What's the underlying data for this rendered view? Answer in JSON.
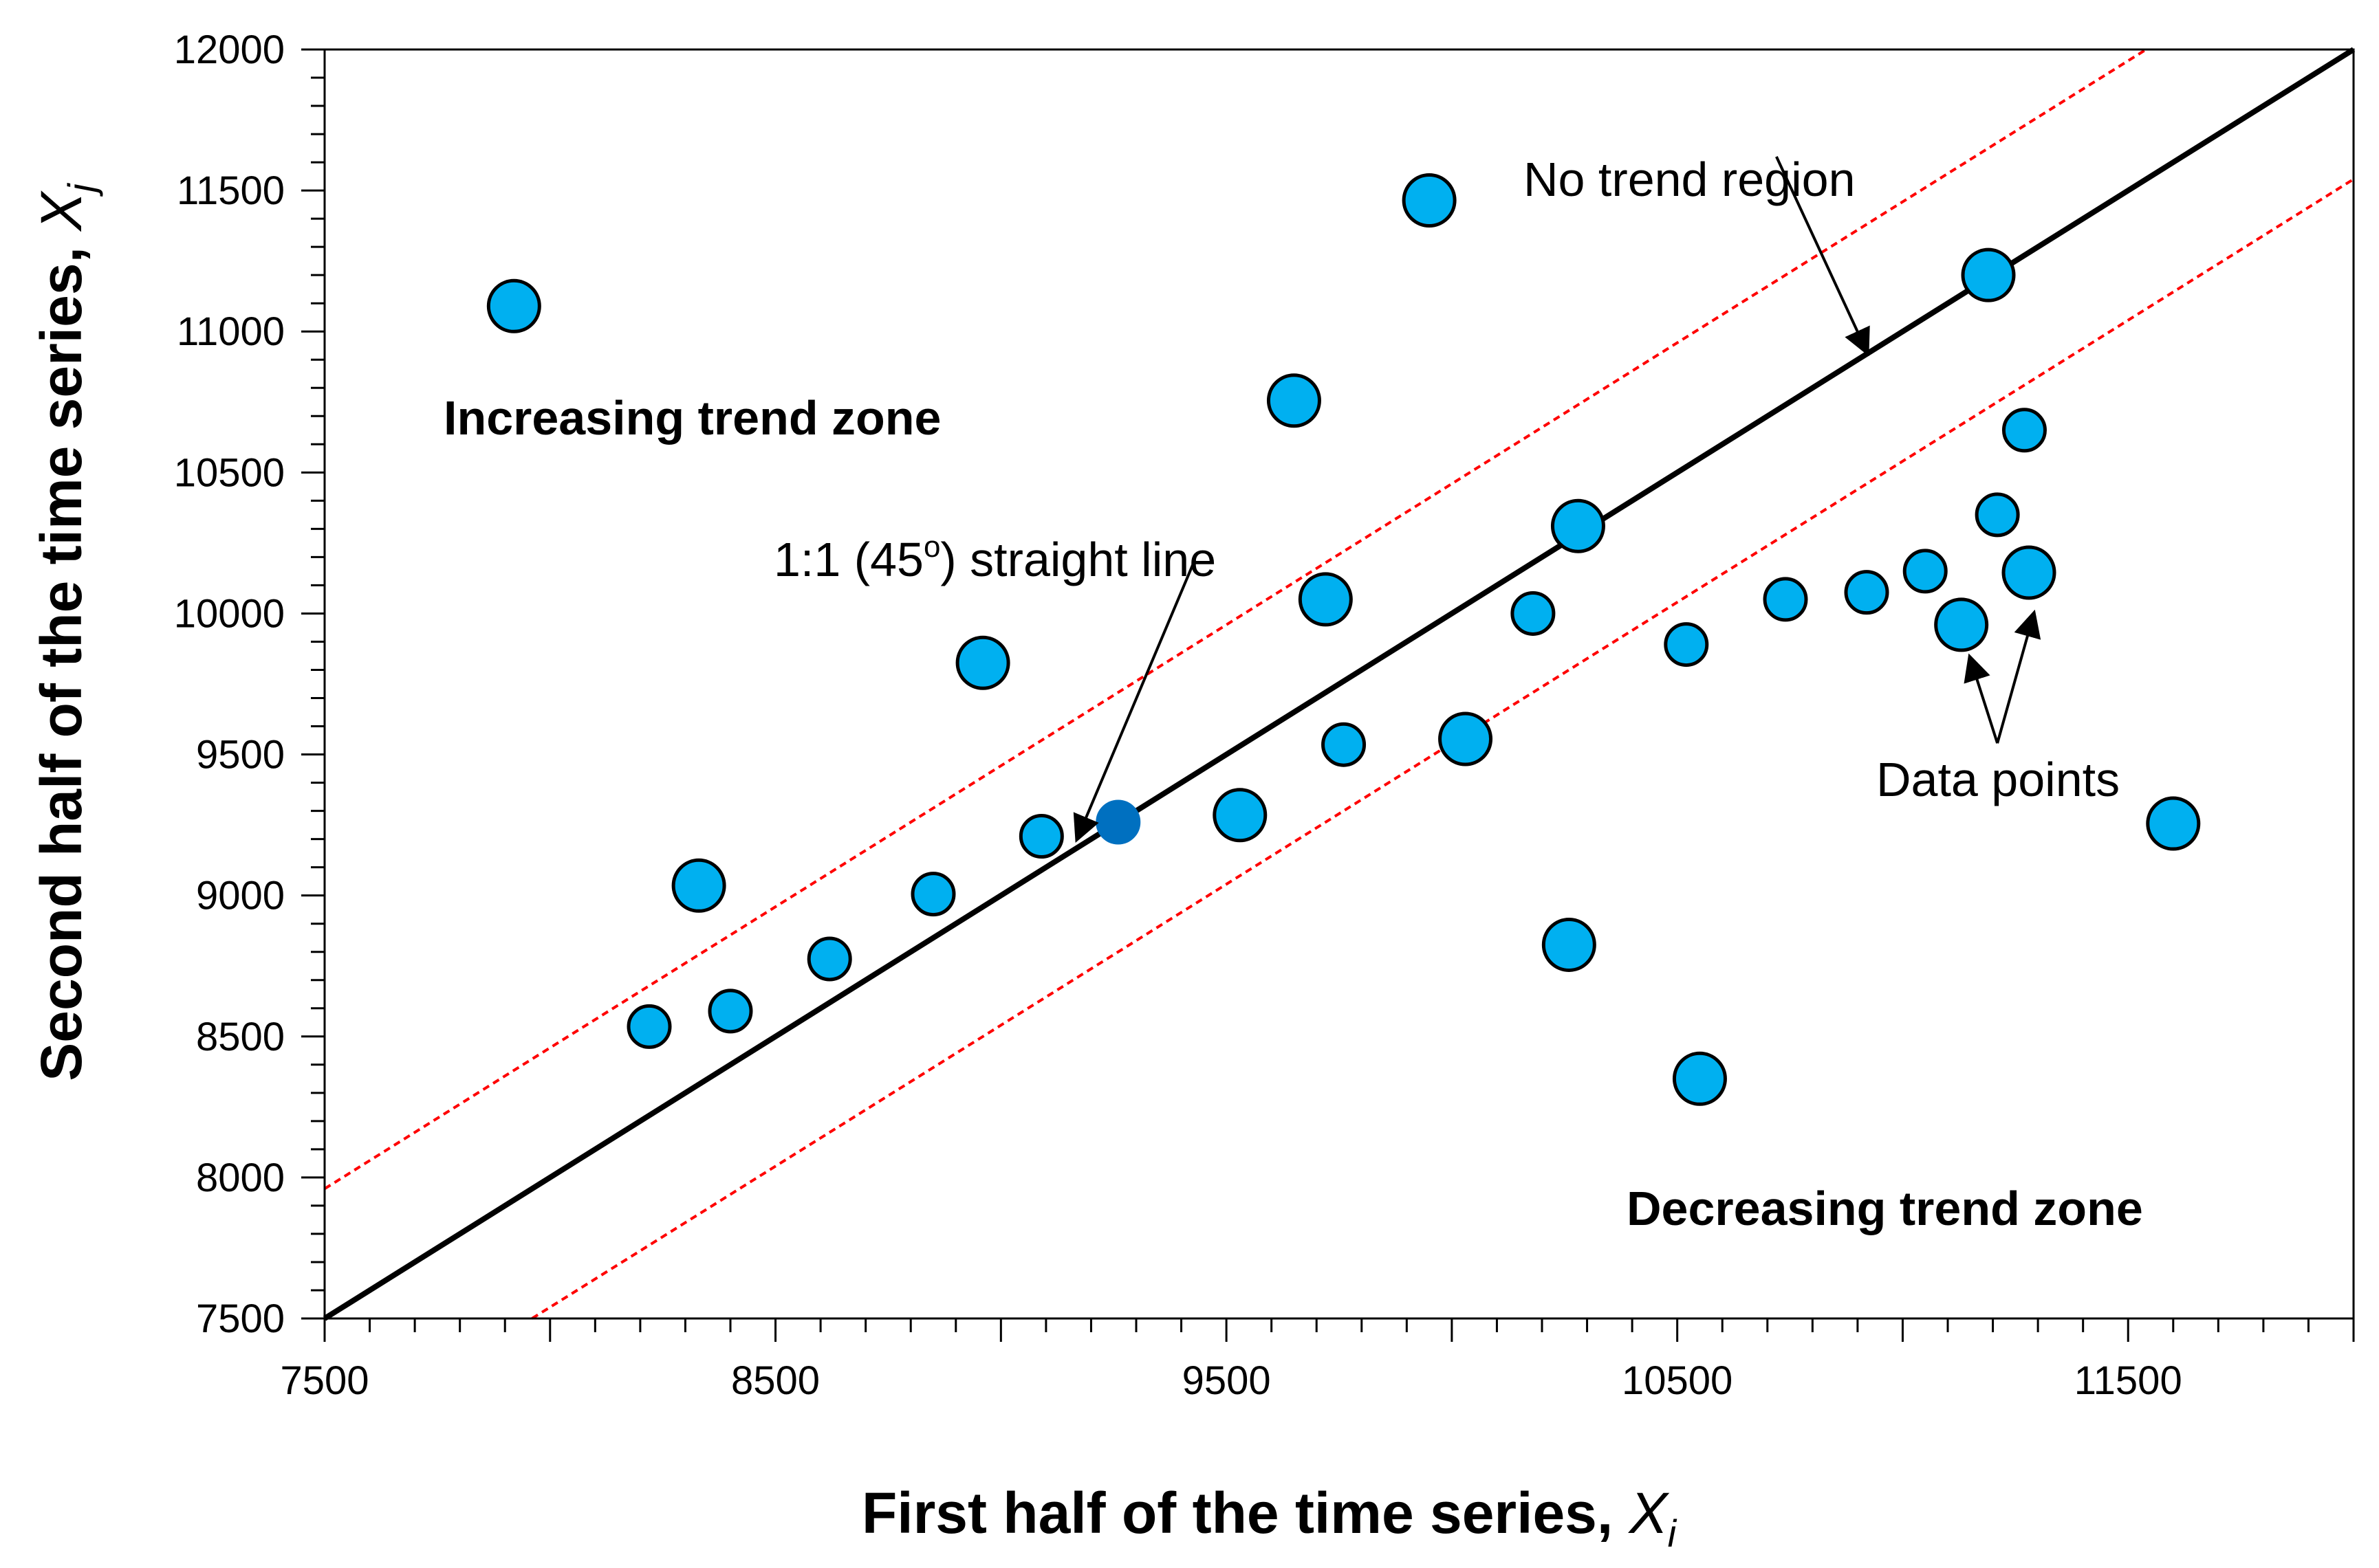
{
  "chart_data": {
    "type": "scatter",
    "title": "",
    "xlabel": "First half of the time series, ",
    "xlabel_var": "X",
    "xlabel_sub": "i",
    "ylabel": "Second half of the time series, ",
    "ylabel_var": "X",
    "ylabel_sub": "j",
    "xlim": [
      7500,
      12000
    ],
    "ylim": [
      7500,
      12000
    ],
    "xticks": [
      7500,
      8500,
      9500,
      10500,
      11500
    ],
    "yticks": [
      7500,
      8000,
      8500,
      9000,
      9500,
      10000,
      10500,
      11000,
      11500,
      12000
    ],
    "xtick_labels": [
      "7500",
      "8500",
      "9500",
      "10500",
      "11500"
    ],
    "ytick_labels": [
      "7500",
      "8000",
      "8500",
      "9000",
      "9500",
      "10000",
      "10500",
      "11000",
      "11500",
      "12000"
    ],
    "x_minor_step": 100,
    "y_minor_step": 100,
    "grid": false,
    "colors": {
      "points": "#00b0f0",
      "highlight_point": "#0070c0",
      "one_to_one_line": "#000000",
      "band_lines": "#ff0000"
    },
    "one_to_one_line": {
      "slope": 1,
      "intercept": 0
    },
    "band_lines": [
      {
        "slope": 1,
        "intercept": 460
      },
      {
        "slope": 1,
        "intercept": -460
      }
    ],
    "series": [
      {
        "name": "Data points",
        "points": [
          {
            "x": 7920,
            "y": 11090,
            "size": "large"
          },
          {
            "x": 8220,
            "y": 8535,
            "size": "small"
          },
          {
            "x": 8330,
            "y": 9035,
            "size": "large"
          },
          {
            "x": 8400,
            "y": 8590,
            "size": "small"
          },
          {
            "x": 8620,
            "y": 8775,
            "size": "small"
          },
          {
            "x": 8850,
            "y": 9005,
            "size": "small"
          },
          {
            "x": 8960,
            "y": 9825,
            "size": "large"
          },
          {
            "x": 9090,
            "y": 9210,
            "size": "small"
          },
          {
            "x": 9260,
            "y": 9260,
            "size": "small",
            "highlight": true
          },
          {
            "x": 9530,
            "y": 9285,
            "size": "large"
          },
          {
            "x": 9650,
            "y": 10755,
            "size": "large"
          },
          {
            "x": 9720,
            "y": 10050,
            "size": "large"
          },
          {
            "x": 9760,
            "y": 9535,
            "size": "small"
          },
          {
            "x": 9950,
            "y": 11465,
            "size": "large"
          },
          {
            "x": 10030,
            "y": 9555,
            "size": "large"
          },
          {
            "x": 10180,
            "y": 10000,
            "size": "small"
          },
          {
            "x": 10260,
            "y": 8825,
            "size": "large"
          },
          {
            "x": 10280,
            "y": 10310,
            "size": "large"
          },
          {
            "x": 10520,
            "y": 9890,
            "size": "small"
          },
          {
            "x": 10550,
            "y": 8350,
            "size": "large"
          },
          {
            "x": 10740,
            "y": 10050,
            "size": "small"
          },
          {
            "x": 10920,
            "y": 10075,
            "size": "small"
          },
          {
            "x": 11050,
            "y": 10150,
            "size": "small"
          },
          {
            "x": 11130,
            "y": 9960,
            "size": "large"
          },
          {
            "x": 11190,
            "y": 11200,
            "size": "large"
          },
          {
            "x": 11210,
            "y": 10350,
            "size": "small"
          },
          {
            "x": 11270,
            "y": 10650,
            "size": "small"
          },
          {
            "x": 11280,
            "y": 10145,
            "size": "large"
          },
          {
            "x": 11600,
            "y": 9255,
            "size": "large"
          }
        ]
      }
    ],
    "annotations": {
      "increasing_zone": "Increasing trend zone",
      "decreasing_zone": "Decreasing trend zone",
      "no_trend": "No trend region",
      "straight_line_prefix": "1:1 (45",
      "straight_line_sup": "o",
      "straight_line_suffix": ")  straight line",
      "data_points": "Data points"
    },
    "arrows": [
      {
        "from": [
          10720,
          11620
        ],
        "to": [
          10920,
          10930
        ]
      },
      {
        "from": [
          9430,
          10190
        ],
        "to": [
          9170,
          9205
        ]
      },
      {
        "from": [
          11210,
          9540
        ],
        "to": [
          11150,
          9840
        ]
      },
      {
        "from": [
          11210,
          9540
        ],
        "to": [
          11290,
          9995
        ]
      }
    ]
  }
}
